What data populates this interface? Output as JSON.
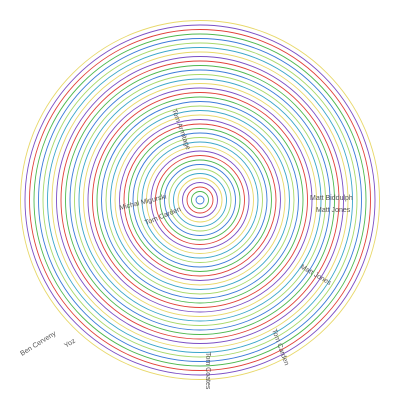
{
  "labels": [
    "Ben Cerveny",
    "Yoz",
    "Michal Migurski",
    "Tom Carden",
    "Matt Biddulph",
    "Matt Jones",
    "Tom Armitage",
    "Tom Coates"
  ]
}
